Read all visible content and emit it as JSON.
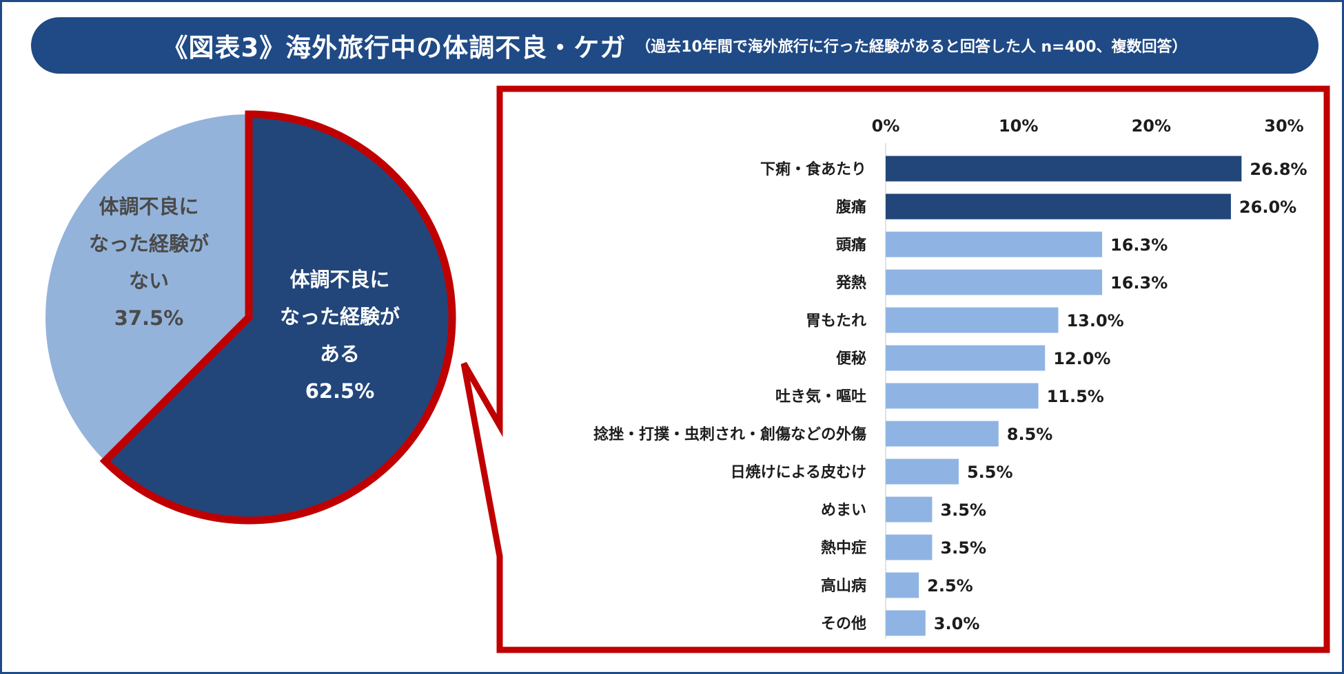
{
  "title": {
    "main": "《図表3》海外旅行中の体調不良・ケガ",
    "sub": "（過去10年間で海外旅行に行った経験があると回答した人 n=400、複数回答）"
  },
  "colors": {
    "navy": "#1f4a85",
    "dark_bar": "#22467a",
    "light_bar": "#8fb4e3",
    "pie_light": "#94b3da",
    "pie_dark": "#22467a",
    "callout_red": "#c00000"
  },
  "chart_data": [
    {
      "type": "pie",
      "slices": [
        {
          "label_lines": [
            "体調不良に",
            "なった経験が",
            "ある"
          ],
          "value": 62.5,
          "value_label": "62.5%",
          "color": "#22467a",
          "highlighted": true
        },
        {
          "label_lines": [
            "体調不良に",
            "なった経験が",
            "ない"
          ],
          "value": 37.5,
          "value_label": "37.5%",
          "color": "#94b3da",
          "highlighted": false
        }
      ]
    },
    {
      "type": "bar",
      "orientation": "horizontal",
      "xlim": [
        0,
        30
      ],
      "x_ticks": [
        "0%",
        "10%",
        "20%",
        "30%"
      ],
      "categories": [
        "下痢・食あたり",
        "腹痛",
        "頭痛",
        "発熱",
        "胃もたれ",
        "便秘",
        "吐き気・嘔吐",
        "捻挫・打撲・虫刺され・創傷などの外傷",
        "日焼けによる皮むけ",
        "めまい",
        "熱中症",
        "高山病",
        "その他"
      ],
      "values": [
        26.8,
        26.0,
        16.3,
        16.3,
        13.0,
        12.0,
        11.5,
        8.5,
        5.5,
        3.5,
        3.5,
        2.5,
        3.0
      ],
      "value_labels": [
        "26.8%",
        "26.0%",
        "16.3%",
        "16.3%",
        "13.0%",
        "12.0%",
        "11.5%",
        "8.5%",
        "5.5%",
        "3.5%",
        "3.5%",
        "2.5%",
        "3.0%"
      ],
      "bar_colors": [
        "#22467a",
        "#22467a",
        "#8fb4e3",
        "#8fb4e3",
        "#8fb4e3",
        "#8fb4e3",
        "#8fb4e3",
        "#8fb4e3",
        "#8fb4e3",
        "#8fb4e3",
        "#8fb4e3",
        "#8fb4e3",
        "#8fb4e3"
      ]
    }
  ]
}
